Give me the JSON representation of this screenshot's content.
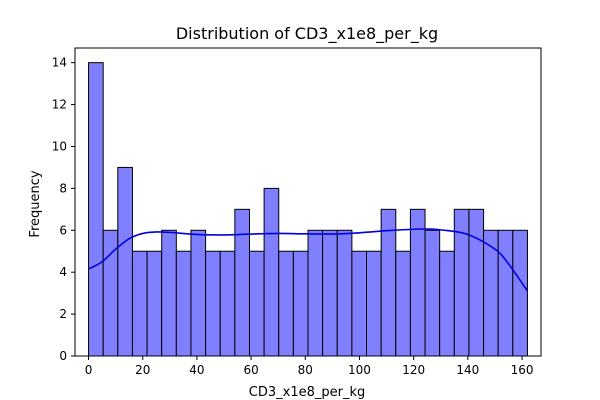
{
  "chart_data": {
    "type": "bar",
    "title": "Distribution of CD3_x1e8_per_kg",
    "xlabel": "CD3_x1e8_per_kg",
    "ylabel": "Frequency",
    "bin_start": 0,
    "bin_width": 5.4,
    "values": [
      14,
      6,
      9,
      5,
      5,
      6,
      5,
      6,
      5,
      5,
      7,
      5,
      8,
      5,
      5,
      6,
      6,
      6,
      5,
      5,
      7,
      5,
      7,
      6,
      5,
      7,
      7,
      6,
      6,
      6
    ],
    "xlim": [
      -5,
      167
    ],
    "ylim": [
      0,
      14.7
    ],
    "xticks": [
      0,
      20,
      40,
      60,
      80,
      100,
      120,
      140,
      160
    ],
    "yticks": [
      0,
      2,
      4,
      6,
      8,
      10,
      12,
      14
    ],
    "kde": {
      "x": [
        0,
        5,
        10,
        15,
        20,
        25,
        30,
        40,
        50,
        60,
        70,
        80,
        90,
        100,
        110,
        120,
        125,
        130,
        140,
        150,
        155,
        162
      ],
      "y": [
        4.15,
        4.5,
        5.1,
        5.6,
        5.85,
        5.92,
        5.9,
        5.8,
        5.78,
        5.82,
        5.85,
        5.83,
        5.82,
        5.88,
        5.98,
        6.05,
        6.06,
        6.02,
        5.8,
        5.1,
        4.4,
        3.1
      ]
    },
    "colors": {
      "bar_fill": "#8080ff",
      "bar_edge": "#000000",
      "kde_line": "#0000dd"
    },
    "grid": false,
    "legend": "none"
  }
}
